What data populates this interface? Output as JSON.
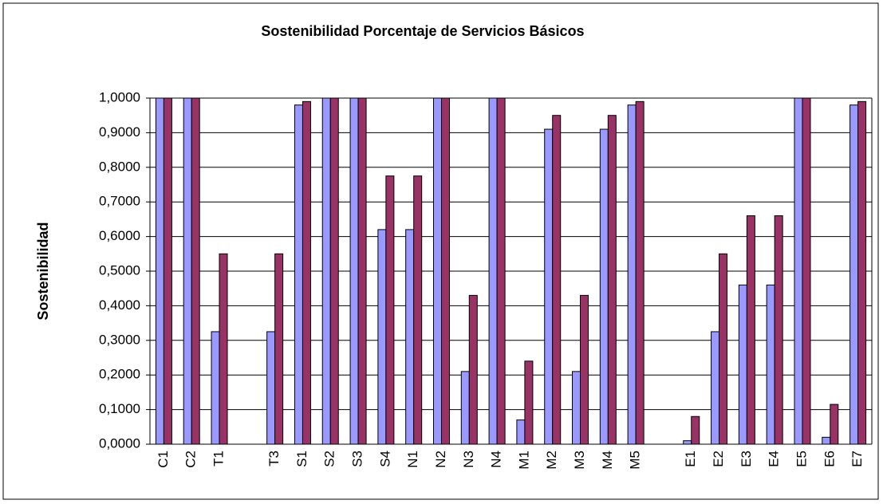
{
  "chart_data": {
    "type": "bar",
    "title": "Sostenibilidad Porcentaje de Servicios Básicos",
    "y_label": "Sostenibilidad",
    "categories": [
      "C1",
      "C2",
      "T1",
      null,
      "T3",
      "S1",
      "S2",
      "S3",
      "S4",
      "N1",
      "N2",
      "N3",
      "N4",
      "M1",
      "M2",
      "M3",
      "M4",
      "M5",
      null,
      "E1",
      "E2",
      "E3",
      "E4",
      "E5",
      "E6",
      "E7"
    ],
    "series": [
      {
        "color": "#9999ff",
        "values": [
          1,
          1,
          0.325,
          null,
          0.325,
          0.98,
          1,
          1,
          0.62,
          0.62,
          1,
          0.21,
          1,
          0.07,
          0.91,
          0.21,
          0.91,
          0.98,
          null,
          0.01,
          0.325,
          0.46,
          0.46,
          1,
          0.02,
          0.98
        ]
      },
      {
        "color": "#993366",
        "values": [
          1,
          1,
          0.55,
          null,
          0.55,
          0.99,
          1,
          1,
          0.775,
          0.775,
          1,
          0.43,
          1,
          0.24,
          0.95,
          0.43,
          0.95,
          0.99,
          null,
          0.08,
          0.55,
          0.66,
          0.66,
          1,
          0.115,
          0.99
        ]
      }
    ],
    "ylim": [
      0,
      1
    ],
    "yticks": [
      {
        "value": 0,
        "label": "0,0000"
      },
      {
        "value": 0.1,
        "label": "0,1000"
      },
      {
        "value": 0.2,
        "label": "0,2000"
      },
      {
        "value": 0.3,
        "label": "0,3000"
      },
      {
        "value": 0.4,
        "label": "0,4000"
      },
      {
        "value": 0.5,
        "label": "0,5000"
      },
      {
        "value": 0.6,
        "label": "0,6000"
      },
      {
        "value": 0.7,
        "label": "0,7000"
      },
      {
        "value": 0.8,
        "label": "0,8000"
      },
      {
        "value": 0.9,
        "label": "0,9000"
      },
      {
        "value": 1,
        "label": "1,0000"
      }
    ],
    "grid": true
  }
}
